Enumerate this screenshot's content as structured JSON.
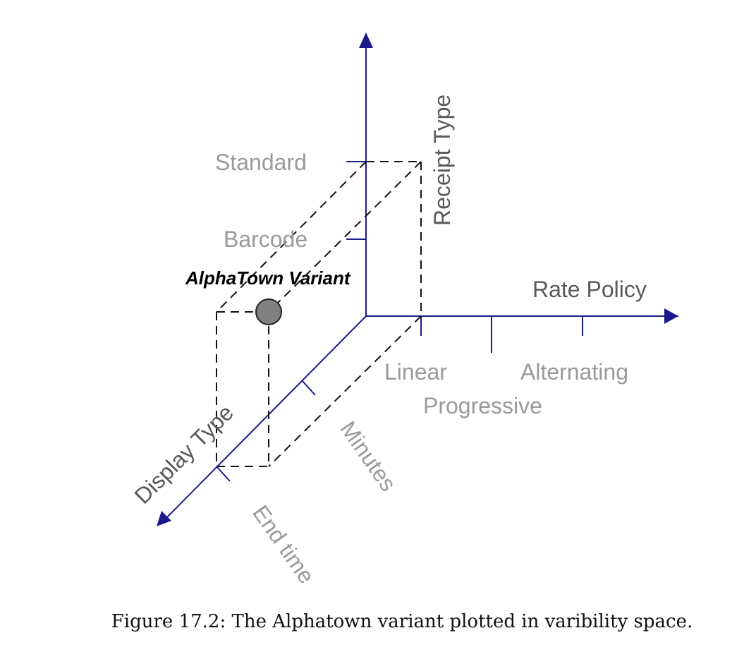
{
  "axes": {
    "receipt": {
      "label": "Receipt Type",
      "ticks": [
        "Barcode",
        "Standard"
      ]
    },
    "rate": {
      "label": "Rate Policy",
      "ticks": [
        "Linear",
        "Progressive",
        "Alternating"
      ]
    },
    "display": {
      "label": "Display Type",
      "ticks": [
        "Minutes",
        "End time"
      ]
    }
  },
  "point": {
    "label": "AlphaTown Variant",
    "receipt": "Standard",
    "rate": "Linear",
    "display": "End time"
  },
  "caption": "Figure 17.2: The Alphatown variant plotted in varibility space.",
  "colors": {
    "axis": "#1a1a8c",
    "tick_label": "#9a9a9a",
    "axis_label": "#595959",
    "point_fill": "#808080"
  }
}
